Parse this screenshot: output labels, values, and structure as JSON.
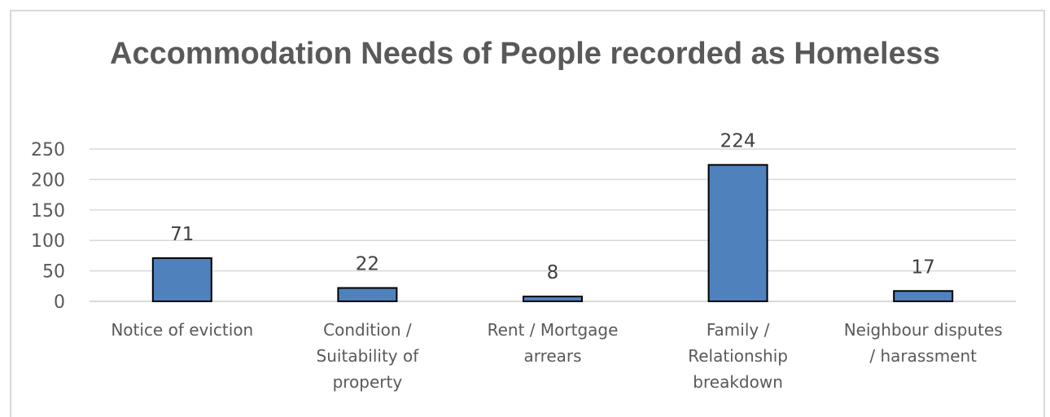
{
  "chart_data": {
    "type": "bar",
    "title": "Accommodation  Needs of People recorded as Homeless",
    "categories": [
      [
        "Notice of eviction"
      ],
      [
        "Condition /",
        "Suitability of",
        "property"
      ],
      [
        "Rent / Mortgage",
        "arrears"
      ],
      [
        "Family /",
        "Relationship",
        "breakdown"
      ],
      [
        "Neighbour disputes",
        "/ harassment"
      ]
    ],
    "values": [
      71,
      22,
      8,
      224,
      17
    ],
    "data_labels": [
      "71",
      "22",
      "8",
      "224",
      "17"
    ],
    "yticks": [
      "0",
      "50",
      "100",
      "150",
      "200",
      "250"
    ],
    "ylim": [
      0,
      250
    ],
    "grid": true,
    "colors": {
      "bar": "#4f81bd",
      "bar_border": "#000000",
      "grid": "#d9d9d9",
      "text": "#595959"
    }
  }
}
